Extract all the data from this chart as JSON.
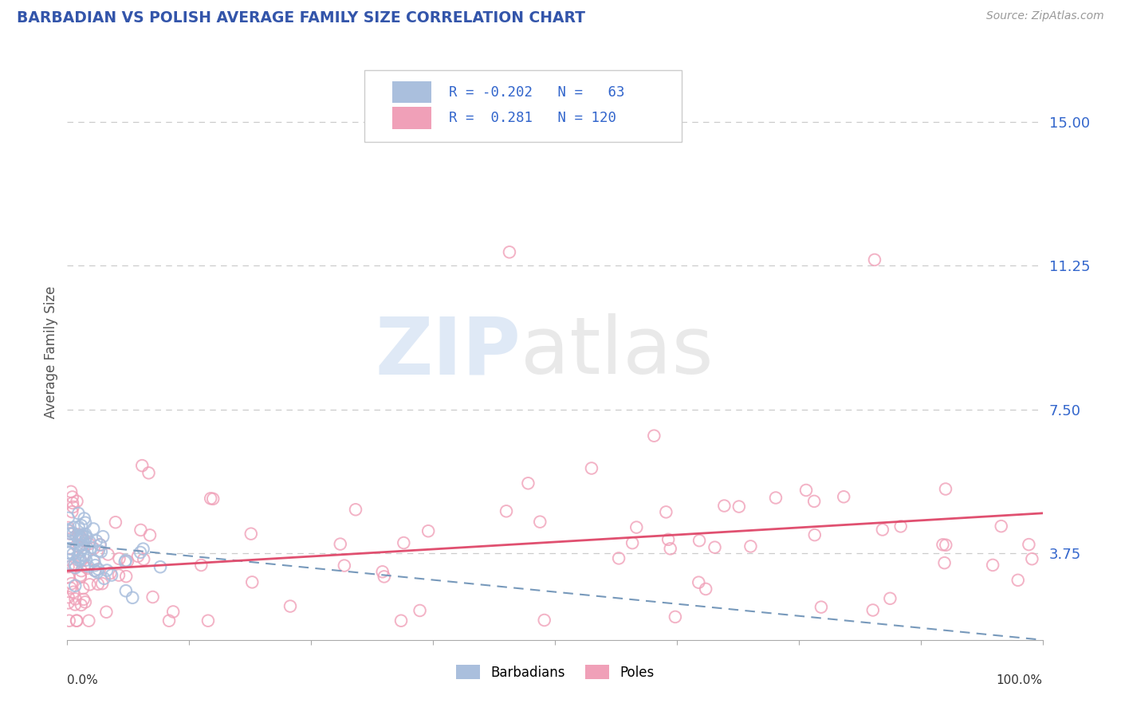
{
  "title": "BARBADIAN VS POLISH AVERAGE FAMILY SIZE CORRELATION CHART",
  "source_text": "Source: ZipAtlas.com",
  "ylabel": "Average Family Size",
  "xlim": [
    0.0,
    1.0
  ],
  "ylim": [
    1.5,
    16.5
  ],
  "yticks": [
    3.75,
    7.5,
    11.25,
    15.0
  ],
  "ytick_labels": [
    "3.75",
    "7.50",
    "11.25",
    "15.00"
  ],
  "xtick_vals": [
    0.0,
    0.125,
    0.25,
    0.375,
    0.5,
    0.625,
    0.75,
    0.875,
    1.0
  ],
  "xtick_label_vals": [
    0.0,
    1.0
  ],
  "xtick_label_texts": [
    "0.0%",
    "100.0%"
  ],
  "barbadian_R": -0.202,
  "barbadian_N": 63,
  "polish_R": 0.281,
  "polish_N": 120,
  "barbadian_color": "#aabfdd",
  "polish_color": "#f0a0b8",
  "barbadian_line_color": "#7799bb",
  "polish_line_color": "#e05070",
  "title_color": "#3355aa",
  "source_color": "#999999",
  "axis_label_color": "#555555",
  "tick_color_right": "#3366cc",
  "watermark_zip_color": "#c5d8ef",
  "watermark_atlas_color": "#d8d8d8",
  "background_color": "#ffffff",
  "grid_color": "#cccccc",
  "legend_color": "#3366cc",
  "seed": 7
}
